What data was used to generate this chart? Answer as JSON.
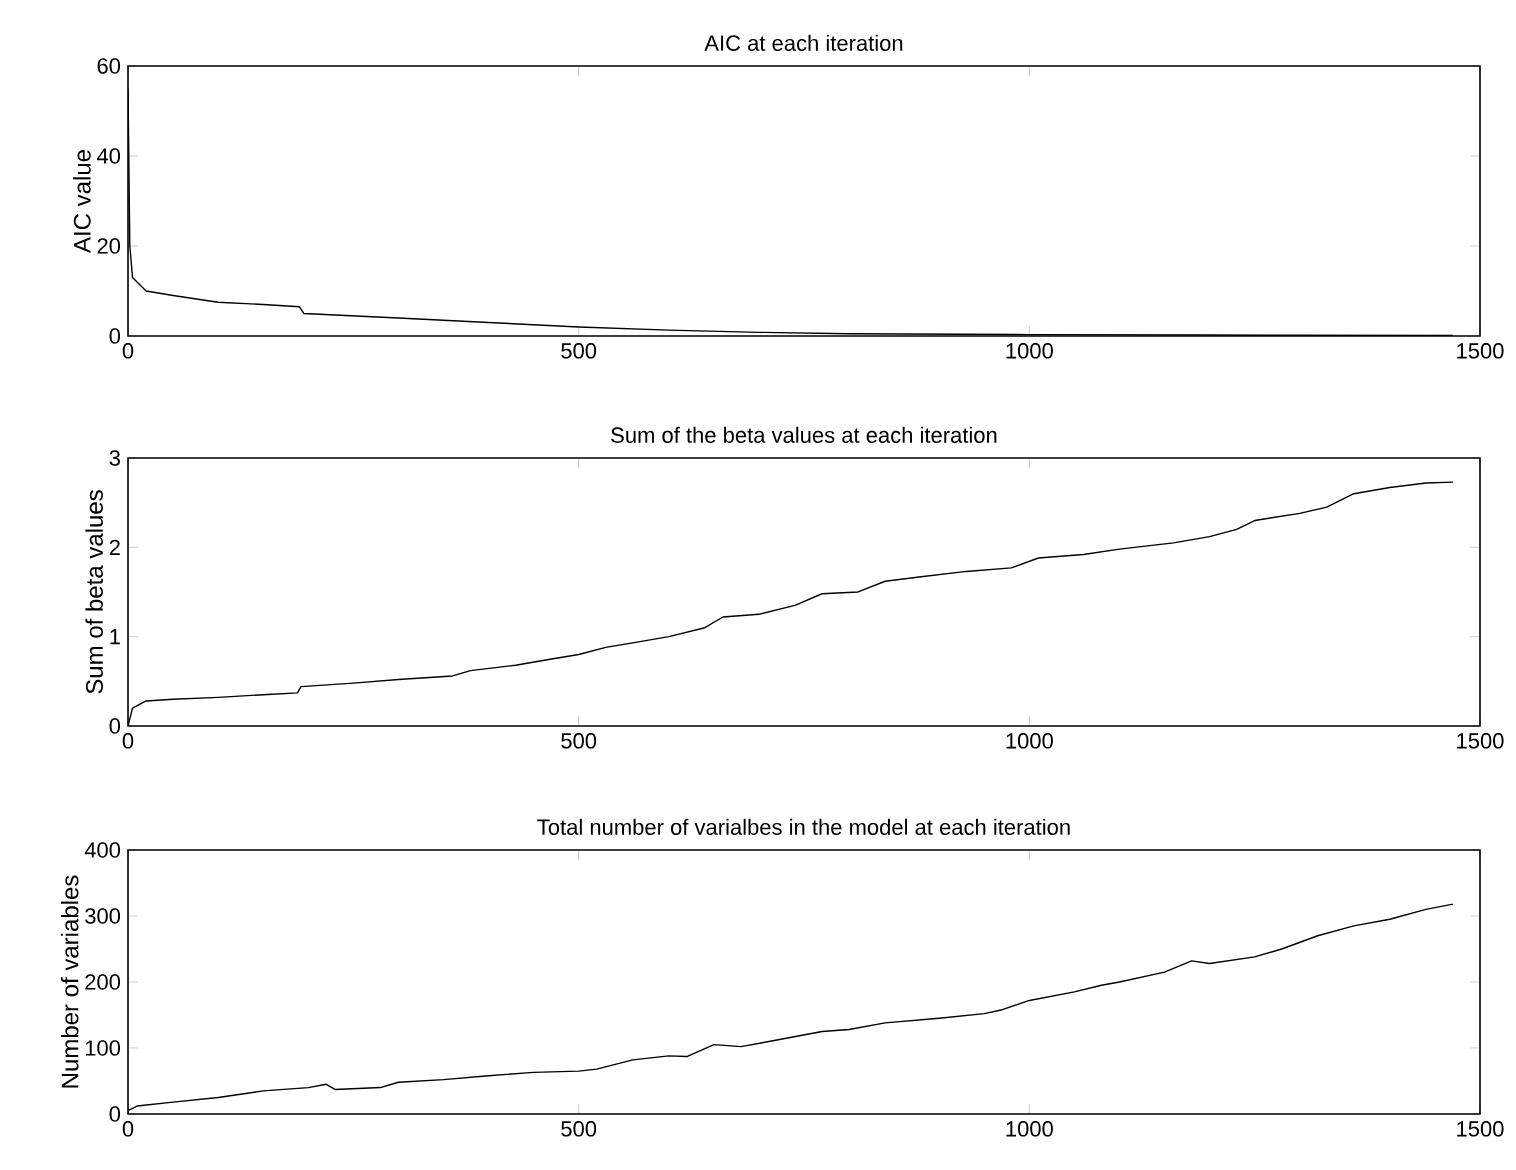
{
  "chart_data": [
    {
      "type": "line",
      "title": "AIC at each iteration",
      "ylabel": "AIC value",
      "xlim": [
        0,
        1500
      ],
      "ylim": [
        0,
        60
      ],
      "xticks": [
        0,
        500,
        1000,
        1500
      ],
      "yticks": [
        0,
        20,
        40,
        60
      ],
      "grid": false,
      "color": "#000000",
      "x": [
        0,
        2,
        5,
        20,
        50,
        100,
        150,
        190,
        195,
        300,
        400,
        500,
        600,
        700,
        800,
        1000,
        1200,
        1470
      ],
      "values": [
        55,
        20,
        13,
        10,
        9,
        7.5,
        7,
        6.5,
        5,
        4,
        3,
        2,
        1.3,
        0.8,
        0.5,
        0.3,
        0.2,
        0.1
      ]
    },
    {
      "type": "line",
      "title": "Sum of the beta values at each iteration",
      "ylabel": "Sum of beta values",
      "xlim": [
        0,
        1500
      ],
      "ylim": [
        0,
        3
      ],
      "xticks": [
        0,
        500,
        1000,
        1500
      ],
      "yticks": [
        0,
        1,
        2,
        3
      ],
      "grid": false,
      "color": "#000000",
      "x": [
        0,
        5,
        20,
        50,
        100,
        150,
        188,
        192,
        250,
        300,
        360,
        380,
        430,
        470,
        500,
        530,
        560,
        600,
        640,
        660,
        700,
        740,
        770,
        810,
        840,
        880,
        930,
        980,
        1010,
        1060,
        1100,
        1160,
        1200,
        1230,
        1250,
        1300,
        1330,
        1360,
        1400,
        1440,
        1470
      ],
      "values": [
        0,
        0.2,
        0.28,
        0.3,
        0.32,
        0.35,
        0.37,
        0.44,
        0.48,
        0.52,
        0.56,
        0.62,
        0.68,
        0.75,
        0.8,
        0.88,
        0.93,
        1.0,
        1.1,
        1.22,
        1.25,
        1.35,
        1.48,
        1.5,
        1.62,
        1.67,
        1.73,
        1.77,
        1.88,
        1.92,
        1.98,
        2.05,
        2.12,
        2.2,
        2.3,
        2.38,
        2.45,
        2.6,
        2.67,
        2.72,
        2.73
      ]
    },
    {
      "type": "line",
      "title": "Total number of varialbes in the model at each iteration",
      "ylabel": "Number of variables",
      "xlim": [
        0,
        1500
      ],
      "ylim": [
        0,
        400
      ],
      "xticks": [
        0,
        500,
        1000,
        1500
      ],
      "yticks": [
        0,
        100,
        200,
        300,
        400
      ],
      "grid": false,
      "color": "#000000",
      "x": [
        0,
        10,
        50,
        100,
        150,
        200,
        220,
        230,
        280,
        300,
        350,
        400,
        450,
        500,
        520,
        560,
        600,
        620,
        650,
        680,
        720,
        770,
        800,
        840,
        900,
        950,
        970,
        1000,
        1050,
        1080,
        1100,
        1150,
        1180,
        1200,
        1250,
        1280,
        1320,
        1360,
        1400,
        1440,
        1470
      ],
      "values": [
        5,
        12,
        18,
        25,
        35,
        40,
        45,
        37,
        40,
        48,
        52,
        58,
        63,
        65,
        68,
        82,
        88,
        87,
        105,
        102,
        112,
        125,
        128,
        138,
        145,
        152,
        158,
        172,
        185,
        195,
        200,
        215,
        232,
        228,
        238,
        250,
        270,
        285,
        295,
        310,
        318
      ]
    }
  ]
}
